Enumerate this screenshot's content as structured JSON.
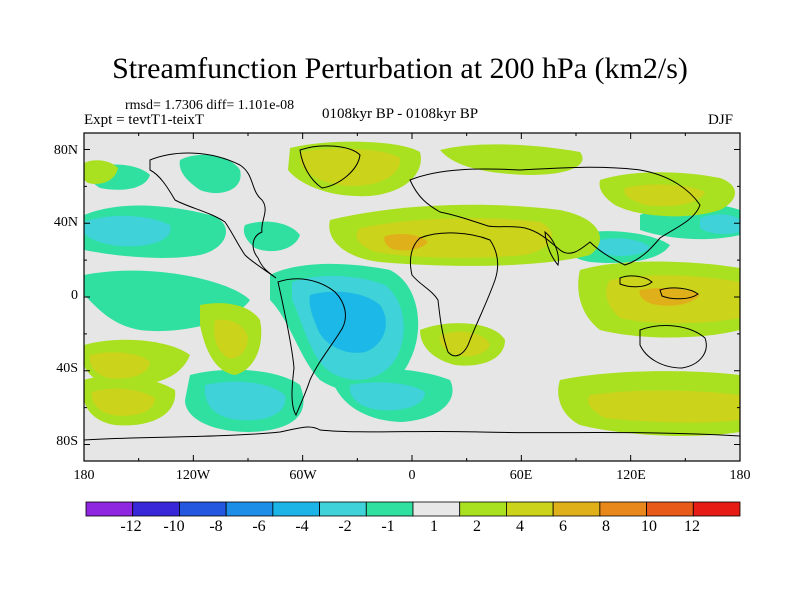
{
  "title": "Streamfunction Perturbation at 200 hPa (km2/s)",
  "stats": "rmsd= 1.7306 diff= 1.101e-08",
  "experiment": "Expt = tevtT1-teixT",
  "period": "0108kyr BP - 0108kyr BP",
  "season": "DJF",
  "lat_labels": [
    "80N",
    "40N",
    "0",
    "40S",
    "80S"
  ],
  "lon_labels": [
    "180",
    "120W",
    "60W",
    "0",
    "60E",
    "120E",
    "180"
  ],
  "colorbar": {
    "labels": [
      "-12",
      "-10",
      "-8",
      "-6",
      "-4",
      "-2",
      "-1",
      "1",
      "2",
      "4",
      "6",
      "8",
      "10",
      "12"
    ],
    "colors": [
      "#8f27e0",
      "#3828d8",
      "#2457e0",
      "#1c8ee8",
      "#1cb3e6",
      "#3fd2d8",
      "#2fe0a0",
      "#e8e8e8",
      "#a9e020",
      "#cbd31b",
      "#e0b01a",
      "#e8881a",
      "#e85a18",
      "#e61c14"
    ]
  },
  "map_palette": {
    "background": "#e6e6e6",
    "cyan_deep": "#1cb8e8",
    "cyan": "#3fd2d8",
    "green_cyan": "#2fe0a0",
    "lime": "#a9e020",
    "olive": "#cbd31b",
    "orange": "#e0b01a"
  }
}
